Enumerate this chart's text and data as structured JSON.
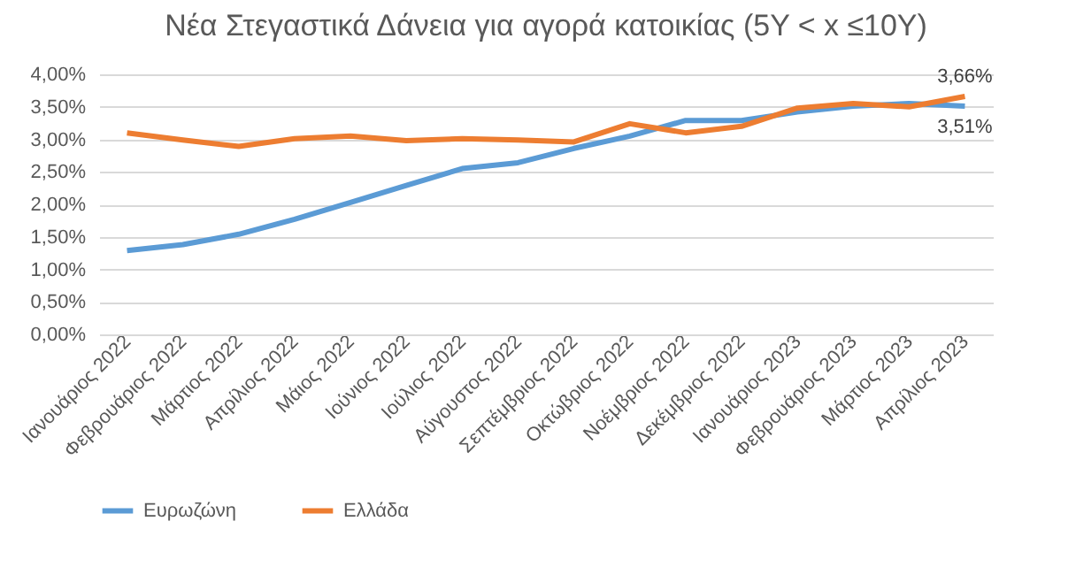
{
  "chart_data": {
    "type": "line",
    "title": "Νέα Στεγαστικά Δάνεια για αγορά κατοικίας (5Y < x ≤10Y)",
    "categories": [
      "Ιανουάριος 2022",
      "Φεβρουάριος 2022",
      "Μάρτιος 2022",
      "Απρίλιος 2022",
      "Μάιος 2022",
      "Ιούνιος 2022",
      "Ιούλιος 2022",
      "Αύγουστος 2022",
      "Σεπτέμβριος 2022",
      "Οκτώβριος 2022",
      "Νοέμβριος 2022",
      "Δεκέμβριος 2022",
      "Ιανουάριος 2023",
      "Φεβρουάριος 2023",
      "Μάρτιος 2023",
      "Απρίλιος 2023"
    ],
    "series": [
      {
        "name": "Ευρωζώνη",
        "color": "#5b9bd5",
        "values": [
          1.29,
          1.38,
          1.54,
          1.77,
          2.03,
          2.29,
          2.55,
          2.64,
          2.86,
          3.05,
          3.29,
          3.29,
          3.42,
          3.51,
          3.55,
          3.51
        ],
        "value_labels": [
          null,
          null,
          null,
          null,
          null,
          null,
          null,
          null,
          null,
          null,
          null,
          null,
          null,
          null,
          null,
          "3,51%"
        ]
      },
      {
        "name": "Ελλάδα",
        "color": "#ed7d31",
        "values": [
          3.1,
          2.99,
          2.89,
          3.01,
          3.05,
          2.98,
          3.01,
          2.99,
          2.96,
          3.24,
          3.1,
          3.2,
          3.48,
          3.55,
          3.5,
          3.66
        ],
        "value_labels": [
          null,
          null,
          null,
          null,
          null,
          null,
          null,
          null,
          null,
          null,
          null,
          null,
          null,
          null,
          null,
          "3,66%"
        ]
      }
    ],
    "ylim": [
      0,
      4
    ],
    "yticks": [
      {
        "value": 0,
        "label": "0,00%"
      },
      {
        "value": 0.5,
        "label": "0,50%"
      },
      {
        "value": 1,
        "label": "1,00%"
      },
      {
        "value": 1.5,
        "label": "1,50%"
      },
      {
        "value": 2,
        "label": "2,00%"
      },
      {
        "value": 2.5,
        "label": "2,50%"
      },
      {
        "value": 3,
        "label": "3,00%"
      },
      {
        "value": 3.5,
        "label": "3,50%"
      },
      {
        "value": 4,
        "label": "4,00%"
      }
    ],
    "grid": "y",
    "legend": "bottom",
    "marker": "none",
    "line_style": "solid"
  }
}
